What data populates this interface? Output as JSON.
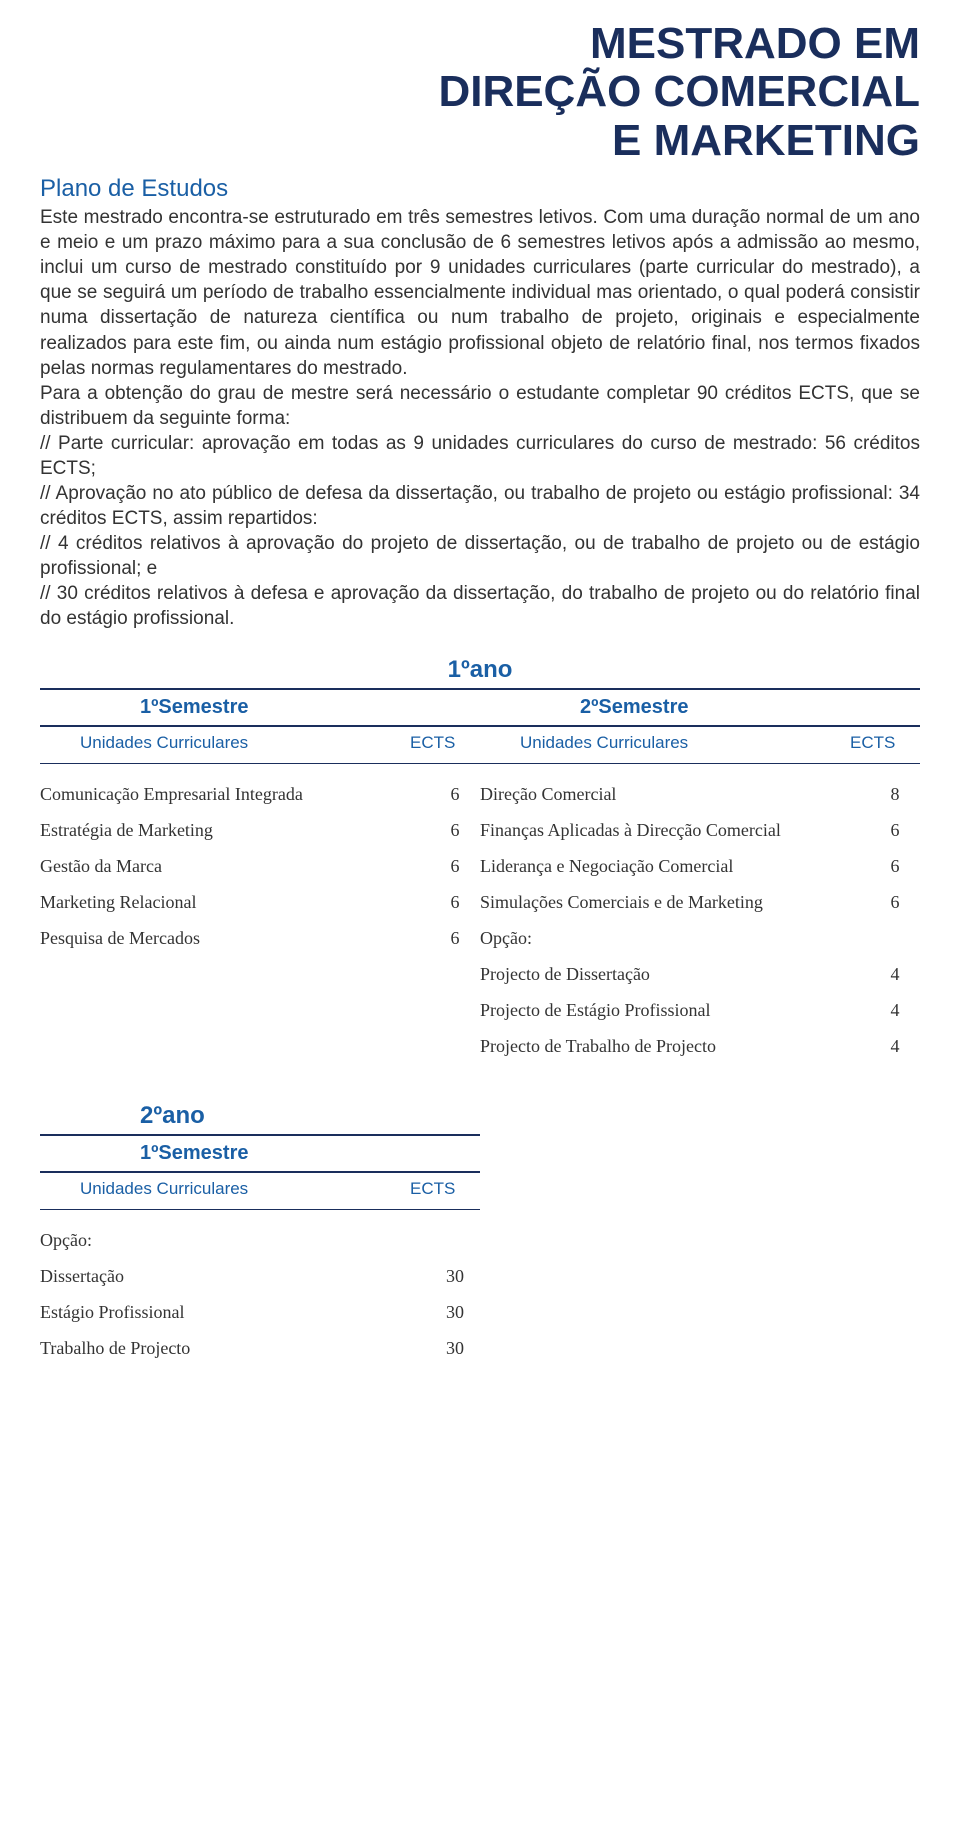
{
  "title": {
    "line1": "MESTRADO EM",
    "line2": "DIREÇÃO COMERCIAL",
    "line3": "E MARKETING"
  },
  "section_heading": "Plano de Estudos",
  "body_html": "Este mestrado encontra-se estruturado em três semestres letivos. Com uma duração normal de um ano e meio e um prazo máximo para a sua conclusão de 6 semestres letivos após a admissão ao mesmo, inclui um curso de mestrado constituído por 9 unidades curriculares (parte curricular do mestrado), a que se seguirá um período de trabalho essencialmente individual mas orientado, o qual poderá consistir numa dissertação de natureza científica ou num trabalho de projeto, originais e especialmente realizados para este fim, ou ainda num estágio profissional objeto de relatório final, nos termos fixados pelas normas regulamentares do mestrado.\nPara a obtenção do grau de mestre será necessário o estudante completar 90 créditos ECTS, que se distribuem da seguinte forma:\n// Parte curricular: aprovação em todas as 9 unidades curriculares do curso de mestrado: 56 créditos ECTS;\n// Aprovação no ato público de defesa da dissertação, ou trabalho de projeto ou estágio profissional: 34 créditos ECTS, assim repartidos:\n// 4 créditos relativos à aprovação do projeto de dissertação, ou de trabalho de projeto ou de estágio profissional; e\n// 30 créditos relativos à defesa e aprovação da dissertação, do trabalho de projeto ou do relatório final do estágio profissional.",
  "labels": {
    "year1": "1ºano",
    "year2": "2ºano",
    "sem1": "1ºSemestre",
    "sem2": "2ºSemestre",
    "col_uc": "Unidades Curriculares",
    "col_ects": "ECTS"
  },
  "year1": {
    "sem1": [
      {
        "name": "Comunicação Empresarial Integrada",
        "ects": "6"
      },
      {
        "name": "Estratégia de Marketing",
        "ects": "6"
      },
      {
        "name": "Gestão da Marca",
        "ects": "6"
      },
      {
        "name": "Marketing Relacional",
        "ects": "6"
      },
      {
        "name": "Pesquisa de Mercados",
        "ects": "6"
      }
    ],
    "sem2": [
      {
        "name": "Direção Comercial",
        "ects": "8"
      },
      {
        "name": "Finanças Aplicadas à Direcção Comercial",
        "ects": "6"
      },
      {
        "name": "Liderança e Negociação Comercial",
        "ects": "6"
      },
      {
        "name": "Simulações Comerciais e de Marketing",
        "ects": "6"
      },
      {
        "name": "Opção:",
        "ects": ""
      },
      {
        "name": "Projecto de Dissertação",
        "ects": "4"
      },
      {
        "name": "Projecto de Estágio Profissional",
        "ects": "4"
      },
      {
        "name": "Projecto de Trabalho de Projecto",
        "ects": "4"
      }
    ]
  },
  "year2": {
    "sem1": [
      {
        "name": "Opção:",
        "ects": ""
      },
      {
        "name": "Dissertação",
        "ects": "30"
      },
      {
        "name": "Estágio Profissional",
        "ects": "30"
      },
      {
        "name": "Trabalho de Projecto",
        "ects": "30"
      }
    ]
  },
  "colors": {
    "title": "#1a2e5c",
    "accent": "#1a5fa5",
    "text": "#333333",
    "rule": "#1a2e5c",
    "background": "#ffffff"
  }
}
